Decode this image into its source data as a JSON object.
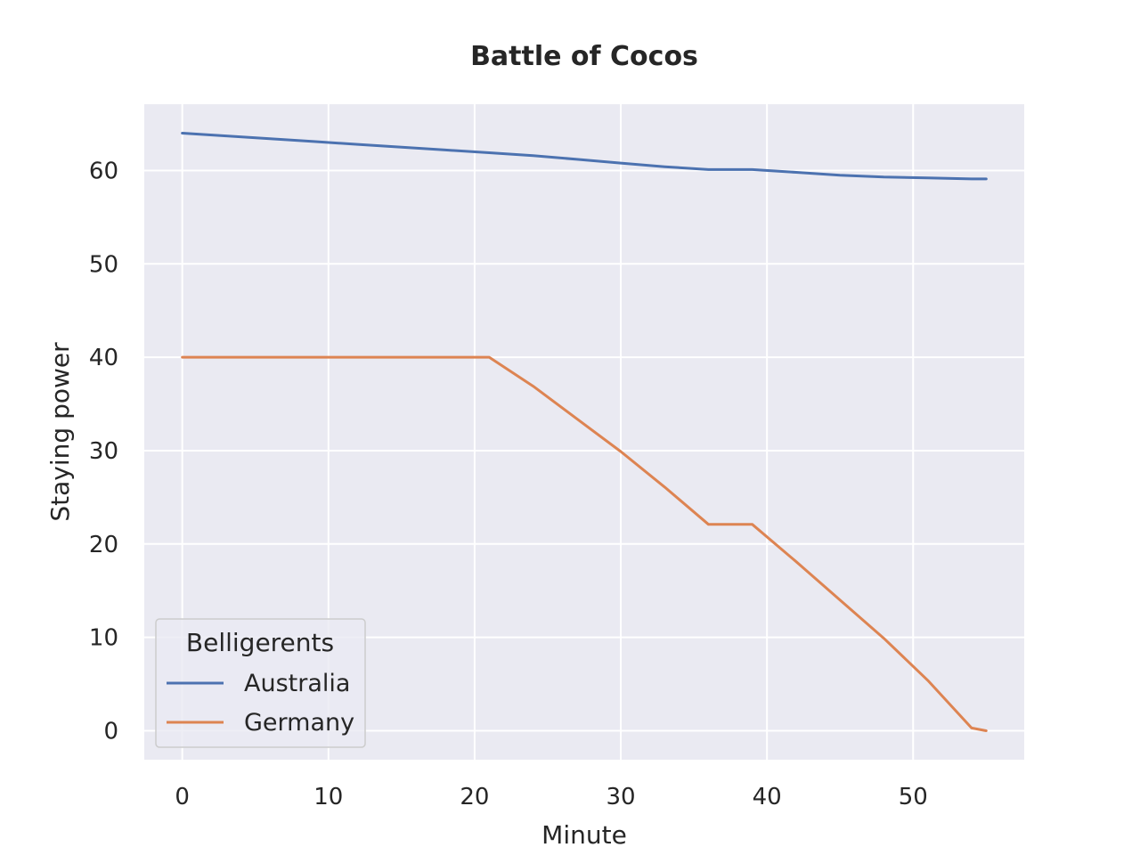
{
  "chart_data": {
    "type": "line",
    "title": "Battle of Cocos",
    "xlabel": "Minute",
    "ylabel": "Staying power",
    "xlim": [
      -2.6,
      57.6
    ],
    "ylim": [
      -3.1,
      67.1
    ],
    "xticks": [
      0,
      10,
      20,
      30,
      40,
      50
    ],
    "yticks": [
      0,
      10,
      20,
      30,
      40,
      50,
      60
    ],
    "grid": true,
    "legend": {
      "title": "Belligerents",
      "placement": "lower-left"
    },
    "series": [
      {
        "name": "Australia",
        "color": "#4c72b0",
        "x": [
          0,
          3,
          6,
          9,
          12,
          15,
          18,
          21,
          24,
          27,
          30,
          33,
          36,
          39,
          42,
          45,
          48,
          51,
          54,
          55
        ],
        "y": [
          64.0,
          63.7,
          63.4,
          63.1,
          62.8,
          62.5,
          62.2,
          61.9,
          61.6,
          61.2,
          60.8,
          60.4,
          60.1,
          60.1,
          59.8,
          59.5,
          59.3,
          59.2,
          59.1,
          59.1
        ]
      },
      {
        "name": "Germany",
        "color": "#dd8452",
        "x": [
          0,
          3,
          6,
          9,
          12,
          15,
          18,
          21,
          24,
          27,
          30,
          33,
          36,
          39,
          42,
          45,
          48,
          51,
          54,
          55
        ],
        "y": [
          40.0,
          40.0,
          40.0,
          40.0,
          40.0,
          40.0,
          40.0,
          40.0,
          36.9,
          33.4,
          29.9,
          26.1,
          22.1,
          22.1,
          18.1,
          14.0,
          9.9,
          5.4,
          0.3,
          0.0
        ]
      }
    ]
  }
}
